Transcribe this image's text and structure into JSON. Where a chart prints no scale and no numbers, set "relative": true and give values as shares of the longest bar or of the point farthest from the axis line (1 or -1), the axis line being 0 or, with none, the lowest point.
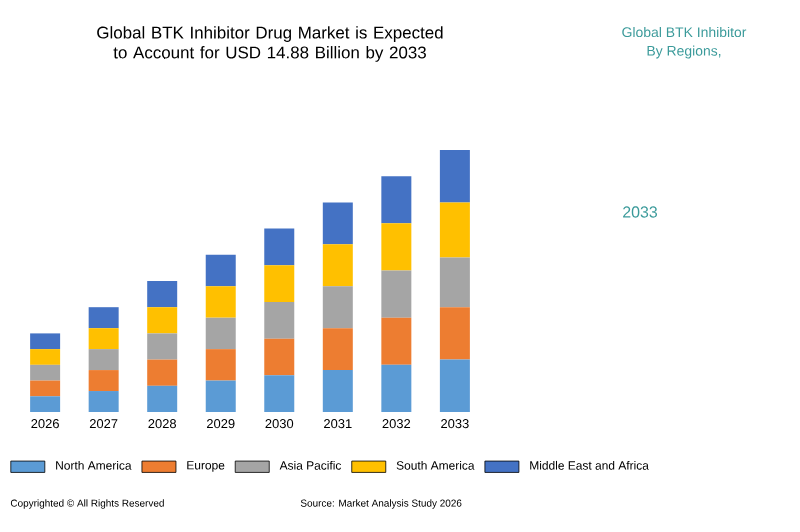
{
  "chart_data": {
    "type": "bar",
    "stacked": true,
    "relative": true,
    "title": "Global BTK Inhibitor Drug Market is Expected to Account for USD 14.88 Billion by 2033",
    "categories": [
      "2026",
      "2027",
      "2028",
      "2029",
      "2030",
      "2031",
      "2032",
      "2033"
    ],
    "series": [
      {
        "name": "North America",
        "color": "#5b9bd5",
        "values": [
          0.06,
          0.08,
          0.1,
          0.12,
          0.14,
          0.16,
          0.18,
          0.2
        ]
      },
      {
        "name": "Europe",
        "color": "#ed7d31",
        "values": [
          0.06,
          0.08,
          0.1,
          0.12,
          0.14,
          0.16,
          0.18,
          0.2
        ]
      },
      {
        "name": "Asia Pacific",
        "color": "#a5a5a5",
        "values": [
          0.06,
          0.08,
          0.1,
          0.12,
          0.14,
          0.16,
          0.18,
          0.19
        ]
      },
      {
        "name": "South America",
        "color": "#ffc000",
        "values": [
          0.06,
          0.08,
          0.1,
          0.12,
          0.14,
          0.16,
          0.18,
          0.21
        ]
      },
      {
        "name": "Middle East and Africa",
        "color": "#4472c4",
        "values": [
          0.06,
          0.08,
          0.1,
          0.12,
          0.14,
          0.16,
          0.18,
          0.2
        ]
      }
    ],
    "legend": "bottom",
    "annotations": [
      "Copyrighted © All Rights Reserved",
      "Source: Market Analysis Study 2026",
      "Global BTK Inhibitor",
      "By Regions,",
      "2033"
    ]
  }
}
